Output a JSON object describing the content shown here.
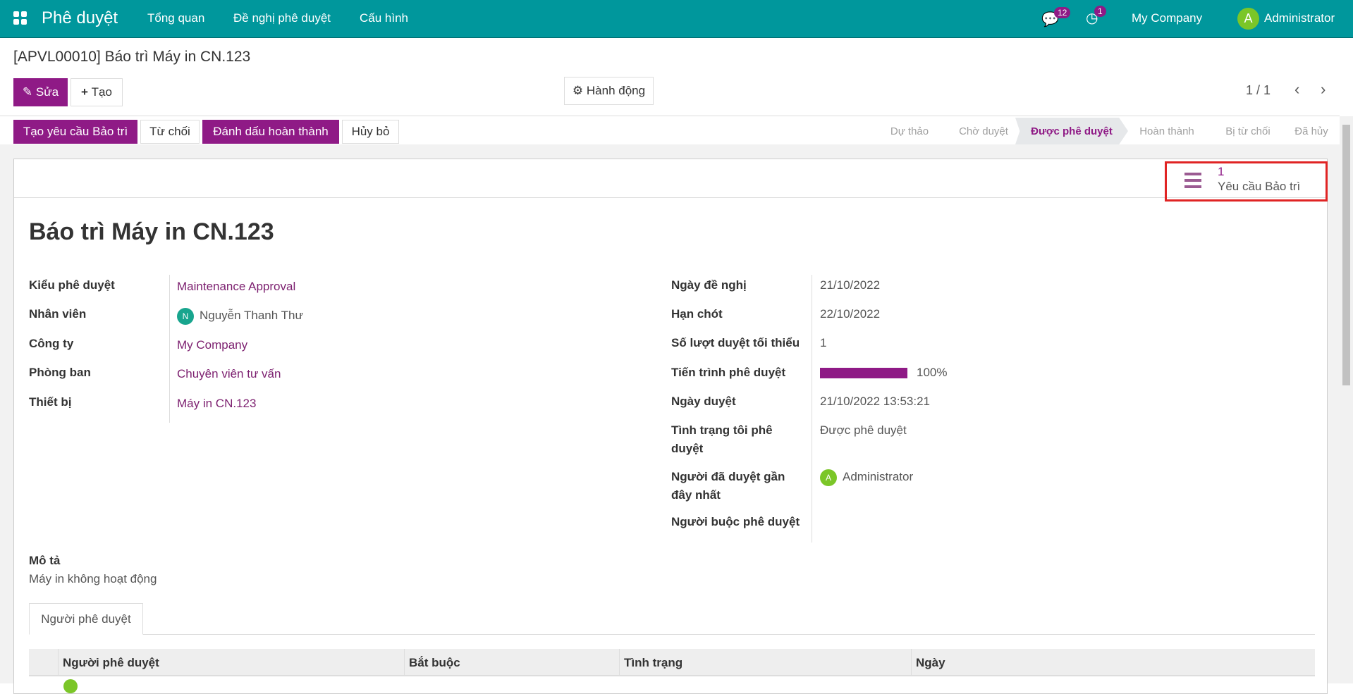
{
  "colors": {
    "navbar": "#00979c",
    "accent": "#8f1a86",
    "link": "#7c1f6f",
    "highlight_box": "#e02424"
  },
  "navbar": {
    "app_title": "Phê duyệt",
    "menu": [
      "Tổng quan",
      "Đề nghị phê duyệt",
      "Cấu hình"
    ],
    "messages_count": "12",
    "activities_count": "1",
    "company": "My Company",
    "user": "Administrator",
    "user_initial": "A"
  },
  "breadcrumb": "[APVL00010] Báo trì Máy in CN.123",
  "toolbar": {
    "edit": "Sửa",
    "create": "Tạo",
    "action": "Hành động",
    "pager": "1 / 1"
  },
  "status_buttons": [
    "Tạo yêu cầu Bảo trì",
    "Từ chối",
    "Đánh dấu hoàn thành",
    "Hủy bỏ"
  ],
  "stages": [
    "Dự thảo",
    "Chờ duyệt",
    "Được phê duyệt",
    "Hoàn thành",
    "Bị từ chối",
    "Đã hủy"
  ],
  "active_stage": "Được phê duyệt",
  "smart_button": {
    "count": "1",
    "label": "Yêu cầu Bảo trì",
    "icon": "list-icon"
  },
  "record": {
    "title": "Báo trì Máy in CN.123",
    "left": [
      {
        "label": "Kiểu phê duyệt",
        "value": "Maintenance Approval"
      },
      {
        "label": "Nhân viên",
        "value": "Nguyễn Thanh Thư",
        "initial": "N"
      },
      {
        "label": "Công ty",
        "value": "My Company"
      },
      {
        "label": "Phòng ban",
        "value": "Chuyên viên tư vấn"
      },
      {
        "label": "Thiết bị",
        "value": "Máy in CN.123"
      }
    ],
    "right": [
      {
        "label": "Ngày đề nghị",
        "value": "21/10/2022"
      },
      {
        "label": "Hạn chót",
        "value": "22/10/2022"
      },
      {
        "label": "Số lượt duyệt tối thiểu",
        "value": "1"
      },
      {
        "label": "Tiến trình phê duyệt",
        "value": "100%",
        "progress": 100
      },
      {
        "label": "Ngày duyệt",
        "value": "21/10/2022 13:53:21"
      },
      {
        "label": "Tình trạng tôi phê duyệt",
        "value": "Được phê duyệt"
      },
      {
        "label": "Người đã duyệt gần đây nhất",
        "value": "Administrator",
        "initial": "A"
      },
      {
        "label": "Người buộc phê duyệt",
        "value": ""
      }
    ],
    "description_label": "Mô tả",
    "description": "Máy in không hoạt động"
  },
  "tabs": [
    "Người phê duyệt"
  ],
  "table": {
    "columns": [
      "Người phê duyệt",
      "Bắt buộc",
      "Tình trạng",
      "Ngày"
    ]
  }
}
